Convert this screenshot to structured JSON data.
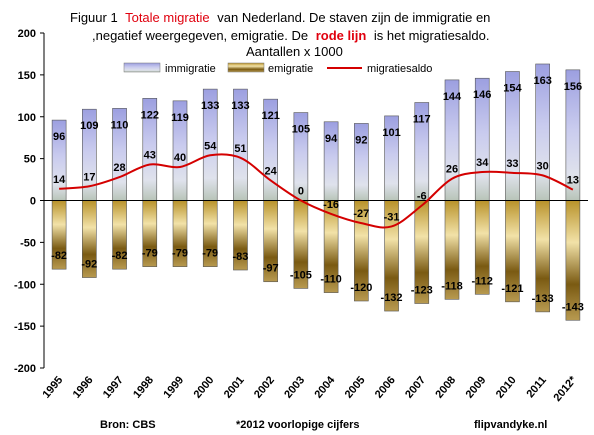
{
  "chart_data": {
    "type": "bar",
    "title_line1_part1": "Figuur 1",
    "title_line1_red": "Totale migratie",
    "title_line1_part2": "van Nederland.  De staven zijn de immigratie  en",
    "title_line2_part1": ",negatief weergegeven, emigratie. De",
    "title_line2_red": "rode lijn",
    "title_line2_part2": "is het migratiesaldo.",
    "subtitle": "Aantallen x 1000",
    "categories": [
      "1995",
      "1996",
      "1997",
      "1998",
      "1999",
      "2000",
      "2001",
      "2002",
      "2003",
      "2004",
      "2005",
      "2006",
      "2007",
      "2008",
      "2009",
      "2010",
      "2011",
      "2012*"
    ],
    "series": [
      {
        "name": "immigratie",
        "values": [
          96,
          109,
          110,
          122,
          119,
          133,
          133,
          121,
          105,
          94,
          92,
          101,
          117,
          144,
          146,
          154,
          163,
          156
        ],
        "color": "#a9ace4"
      },
      {
        "name": "emigratie",
        "values": [
          -82,
          -92,
          -82,
          -79,
          -79,
          -79,
          -83,
          -97,
          -105,
          -110,
          -120,
          -132,
          -123,
          -118,
          -112,
          -121,
          -133,
          -143
        ],
        "color": "#c9a230"
      },
      {
        "name": "migratiesaldo",
        "values": [
          14,
          17,
          28,
          43,
          40,
          54,
          51,
          24,
          0,
          -16,
          -27,
          -31,
          -6,
          26,
          34,
          33,
          30,
          13
        ],
        "color": "#d40000"
      }
    ],
    "ylim": [
      -200,
      200
    ],
    "yticks": [
      -200,
      -150,
      -100,
      -50,
      0,
      50,
      100,
      150,
      200
    ],
    "legend_position": "top",
    "grid": false
  },
  "footer": {
    "source": "Bron: CBS",
    "note": "*2012 voorlopige cijfers",
    "site": "flipvandyke.nl"
  }
}
